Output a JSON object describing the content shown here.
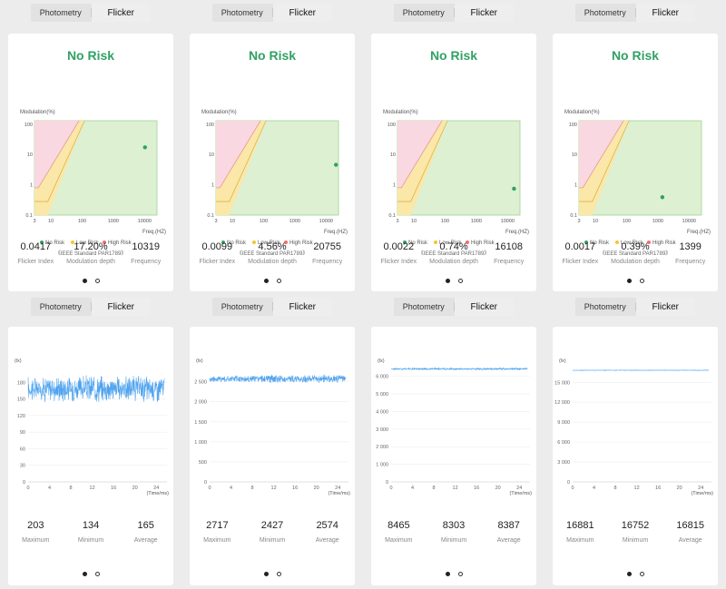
{
  "tabs": {
    "photometry": "Photometry",
    "flicker": "Flicker"
  },
  "risk_chart_labels": {
    "ylabel": "Modulation(%)",
    "xlabel": "Freq.(HZ)",
    "y_ticks": [
      "100",
      "10",
      "1",
      "0.1"
    ],
    "x_ticks": [
      "3",
      "10",
      "100",
      "1000",
      "10000"
    ],
    "legend": [
      "No Risk",
      "Low Risk",
      "High Risk"
    ],
    "standard": "《IEEE Standard PAR1789》"
  },
  "colors": {
    "no_risk": "#31a163",
    "low_risk": "#f3c531",
    "high_risk": "#f1706b",
    "wave": "#4fa3ee"
  },
  "flicker_cards": [
    {
      "risk": "No Risk",
      "point": {
        "freq": 10319,
        "modulation": 17.2
      },
      "stats": [
        {
          "value": "0.0417",
          "label": "Flicker Index"
        },
        {
          "value": "17.20%",
          "label": "Modulation depth"
        },
        {
          "value": "10319",
          "label": "Frequency"
        }
      ]
    },
    {
      "risk": "No Risk",
      "point": {
        "freq": 20755,
        "modulation": 4.56
      },
      "stats": [
        {
          "value": "0.0099",
          "label": "Flicker Index"
        },
        {
          "value": "4.56%",
          "label": "Modulation depth"
        },
        {
          "value": "20755",
          "label": "Frequency"
        }
      ]
    },
    {
      "risk": "No Risk",
      "point": {
        "freq": 16108,
        "modulation": 0.74
      },
      "stats": [
        {
          "value": "0.0022",
          "label": "Flicker Index"
        },
        {
          "value": "0.74%",
          "label": "Modulation depth"
        },
        {
          "value": "16108",
          "label": "Frequency"
        }
      ]
    },
    {
      "risk": "No Risk",
      "point": {
        "freq": 1399,
        "modulation": 0.39
      },
      "stats": [
        {
          "value": "0.0017",
          "label": "Flicker Index"
        },
        {
          "value": "0.39%",
          "label": "Modulation depth"
        },
        {
          "value": "1399",
          "label": "Frequency"
        }
      ]
    }
  ],
  "wave_cards": [
    {
      "ylabel": "(lx)",
      "xlabel": "(Time/ms)",
      "y_ticks": [
        "0",
        "30",
        "60",
        "90",
        "120",
        "150",
        "180"
      ],
      "x_ticks": [
        "0",
        "4",
        "8",
        "12",
        "16",
        "20",
        "24"
      ],
      "ymax": 210,
      "min": 134,
      "max": 203,
      "avg": 165,
      "stats": [
        {
          "value": "203",
          "label": "Maximum"
        },
        {
          "value": "134",
          "label": "Minimum"
        },
        {
          "value": "165",
          "label": "Average"
        }
      ]
    },
    {
      "ylabel": "(lx)",
      "xlabel": "(Time/ms)",
      "y_ticks": [
        "0",
        "500",
        "1 000",
        "1 500",
        "2 000",
        "2 500"
      ],
      "x_ticks": [
        "0",
        "4",
        "8",
        "12",
        "16",
        "20",
        "24"
      ],
      "ymax": 2900,
      "min": 2427,
      "max": 2717,
      "avg": 2574,
      "stats": [
        {
          "value": "2717",
          "label": "Maximum"
        },
        {
          "value": "2427",
          "label": "Minimum"
        },
        {
          "value": "2574",
          "label": "Average"
        }
      ]
    },
    {
      "ylabel": "(lx)",
      "xlabel": "(Time/ms)",
      "y_ticks": [
        "0",
        "1 000",
        "2 000",
        "3 000",
        "4 000",
        "5 000",
        "6 000"
      ],
      "x_ticks": [
        "0",
        "4",
        "8",
        "12",
        "16",
        "20",
        "24"
      ],
      "ymax": 6600,
      "min": 8303,
      "max": 8465,
      "avg": 8387,
      "stats": [
        {
          "value": "8465",
          "label": "Maximum"
        },
        {
          "value": "8303",
          "label": "Minimum"
        },
        {
          "value": "8387",
          "label": "Average"
        }
      ]
    },
    {
      "ylabel": "(lx)",
      "xlabel": "(Time/ms)",
      "y_ticks": [
        "0",
        "3 000",
        "6 000",
        "9 000",
        "12 000",
        "15 000"
      ],
      "x_ticks": [
        "0",
        "4",
        "8",
        "12",
        "16",
        "20",
        "24"
      ],
      "ymax": 17500,
      "min": 16752,
      "max": 16881,
      "avg": 16815,
      "stats": [
        {
          "value": "16881",
          "label": "Maximum"
        },
        {
          "value": "16752",
          "label": "Minimum"
        },
        {
          "value": "16815",
          "label": "Average"
        }
      ]
    }
  ]
}
